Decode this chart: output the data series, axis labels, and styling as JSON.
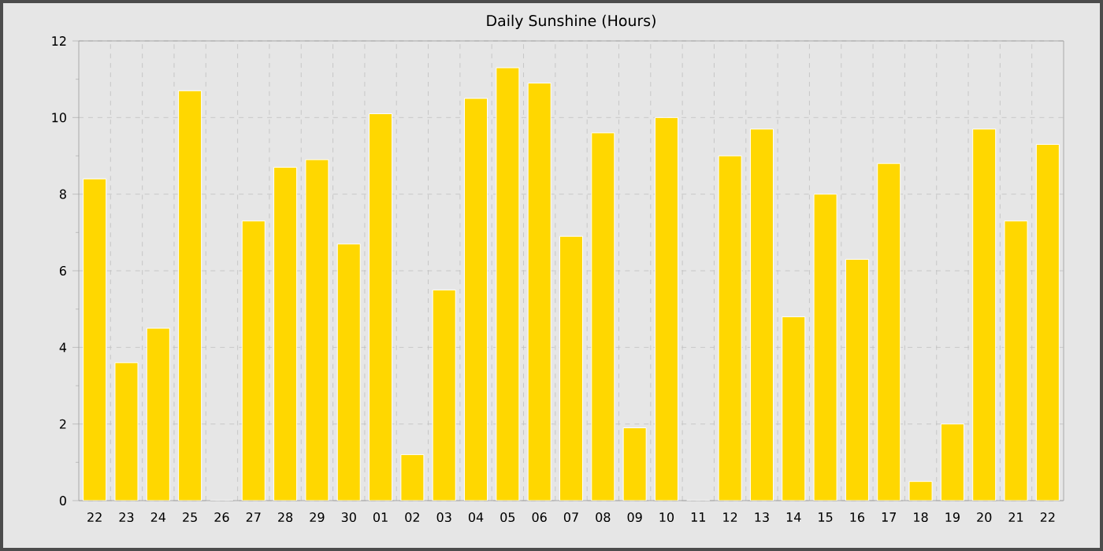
{
  "chart_data": {
    "type": "bar",
    "title": "Daily Sunshine (Hours)",
    "categories": [
      "22",
      "23",
      "24",
      "25",
      "26",
      "27",
      "28",
      "29",
      "30",
      "01",
      "02",
      "03",
      "04",
      "05",
      "06",
      "07",
      "08",
      "09",
      "10",
      "11",
      "12",
      "13",
      "14",
      "15",
      "16",
      "17",
      "18",
      "19",
      "20",
      "21",
      "22"
    ],
    "values": [
      8.4,
      3.6,
      4.5,
      10.7,
      0,
      7.3,
      8.7,
      8.9,
      6.7,
      10.1,
      1.2,
      5.5,
      10.5,
      11.3,
      10.9,
      6.9,
      9.6,
      1.9,
      10.0,
      0,
      9.0,
      9.7,
      4.8,
      8.0,
      6.3,
      8.8,
      0.5,
      2.0,
      9.7,
      7.3,
      9.3
    ],
    "color": "#ffd700",
    "ylim": [
      0,
      12
    ],
    "yticks": [
      0,
      2,
      4,
      6,
      8,
      10,
      12
    ],
    "grid": true
  }
}
